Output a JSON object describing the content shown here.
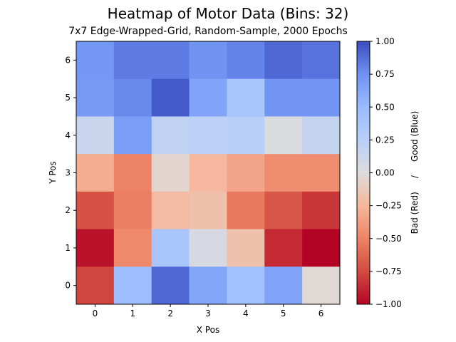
{
  "chart_data": {
    "type": "heatmap",
    "title": "Heatmap of Motor Data (Bins: 32)",
    "subtitle": "7x7 Edge-Wrapped-Grid, Random-Sample, 2000 Epochs",
    "xlabel": "X Pos",
    "ylabel": "Y Pos",
    "x_ticks": [
      "0",
      "1",
      "2",
      "3",
      "4",
      "5",
      "6"
    ],
    "y_ticks": [
      "0",
      "1",
      "2",
      "3",
      "4",
      "5",
      "6"
    ],
    "colormap": "coolwarm",
    "colorbar": {
      "label": "Bad (Red)     /     Good (Blue)",
      "range": [
        -1.0,
        1.0
      ],
      "ticks": [
        "1.00",
        "0.75",
        "0.50",
        "0.25",
        "0.00",
        "−0.25",
        "−0.50",
        "−0.75",
        "−1.00"
      ]
    },
    "values_by_row_y6_to_y0": [
      [
        0.72,
        0.83,
        0.83,
        0.74,
        0.8,
        0.9,
        0.86
      ],
      [
        0.7,
        0.78,
        0.95,
        0.64,
        0.38,
        0.73,
        0.73
      ],
      [
        0.14,
        0.68,
        0.2,
        0.22,
        0.25,
        0.02,
        0.17
      ],
      [
        -0.3,
        -0.5,
        -0.05,
        -0.24,
        -0.34,
        -0.45,
        -0.45
      ],
      [
        -0.72,
        -0.52,
        -0.22,
        -0.18,
        -0.55,
        -0.7,
        -0.82
      ],
      [
        -0.95,
        -0.47,
        0.38,
        0.05,
        -0.18,
        -0.87,
        -1.0
      ],
      [
        -0.77,
        0.47,
        0.9,
        0.63,
        0.43,
        0.64,
        -0.03
      ]
    ]
  }
}
